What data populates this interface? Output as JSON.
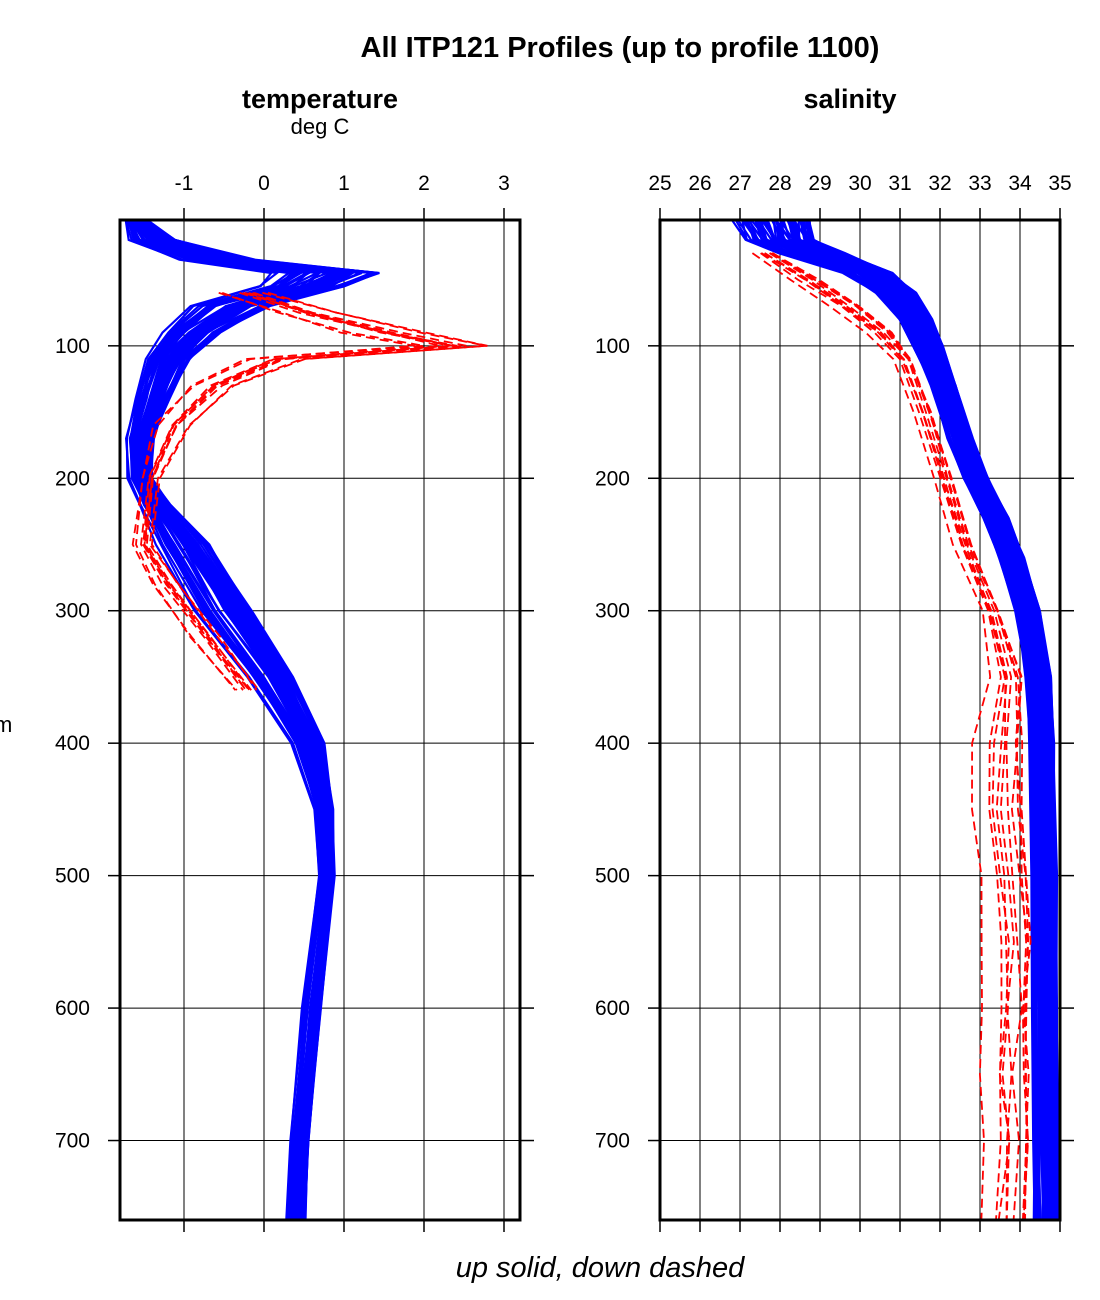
{
  "chart_data": [
    {
      "type": "line",
      "title": "temperature",
      "xlabel": "deg C",
      "ylabel": "m",
      "xlim": [
        -1.8,
        3.2
      ],
      "ylim": [
        760,
        5
      ],
      "xticks": [
        -1,
        0,
        1,
        2,
        3
      ],
      "yticks": [
        100,
        200,
        300,
        400,
        500,
        600,
        700
      ],
      "grid": true,
      "series": [
        {
          "style": "solid",
          "color": "#0000ff",
          "depth": [
            5,
            20,
            35,
            45,
            55,
            70,
            90,
            110,
            140,
            170,
            200,
            220,
            250,
            300,
            350,
            400,
            450,
            500,
            600,
            700,
            760
          ],
          "values": [
            -1.6,
            -1.4,
            -0.6,
            0.8,
            0.5,
            -0.4,
            -0.9,
            -1.2,
            -1.4,
            -1.55,
            -1.55,
            -1.35,
            -1.0,
            -0.5,
            0.1,
            0.55,
            0.75,
            0.78,
            0.6,
            0.45,
            0.4
          ],
          "spread": [
            0.15,
            0.3,
            0.5,
            0.7,
            0.55,
            0.5,
            0.35,
            0.3,
            0.22,
            0.18,
            0.15,
            0.2,
            0.35,
            0.35,
            0.3,
            0.2,
            0.12,
            0.1,
            0.12,
            0.12,
            0.12
          ]
        },
        {
          "style": "dashed",
          "color": "#ff0000",
          "depth": [
            60,
            75,
            90,
            100,
            110,
            130,
            160,
            200,
            250,
            280,
            320,
            360
          ],
          "values": [
            -0.2,
            0.6,
            1.6,
            2.4,
            0.2,
            -0.6,
            -1.1,
            -1.4,
            -1.5,
            -1.2,
            -0.7,
            -0.2
          ],
          "spread": [
            0.4,
            0.5,
            0.7,
            0.6,
            0.5,
            0.35,
            0.3,
            0.15,
            0.15,
            0.2,
            0.25,
            0.2
          ]
        }
      ]
    },
    {
      "type": "line",
      "title": "salinity",
      "xlabel": "",
      "ylabel": "",
      "xlim": [
        25,
        35
      ],
      "ylim": [
        760,
        5
      ],
      "xticks": [
        25,
        26,
        27,
        28,
        29,
        30,
        31,
        32,
        33,
        34,
        35
      ],
      "yticks": [
        100,
        200,
        300,
        400,
        500,
        600,
        700
      ],
      "grid": true,
      "series": [
        {
          "style": "solid",
          "color": "#0000ff",
          "depth": [
            5,
            20,
            30,
            45,
            60,
            80,
            100,
            130,
            170,
            200,
            230,
            260,
            300,
            350,
            400,
            500,
            600,
            700,
            760
          ],
          "values": [
            27.8,
            28.0,
            28.8,
            30.2,
            30.9,
            31.4,
            31.7,
            32.1,
            32.5,
            32.9,
            33.4,
            33.8,
            34.2,
            34.45,
            34.55,
            34.6,
            34.62,
            34.64,
            34.65
          ],
          "spread": [
            0.9,
            0.8,
            0.8,
            0.6,
            0.5,
            0.4,
            0.35,
            0.3,
            0.3,
            0.3,
            0.3,
            0.3,
            0.3,
            0.3,
            0.3,
            0.3,
            0.3,
            0.3,
            0.3
          ]
        },
        {
          "style": "dashed",
          "color": "#ff0000",
          "depth": [
            30,
            50,
            70,
            90,
            110,
            150,
            200,
            250,
            300,
            350,
            400,
            450,
            500,
            550,
            600,
            650,
            700,
            760
          ],
          "values": [
            27.5,
            28.5,
            29.5,
            30.4,
            31.0,
            31.5,
            32.0,
            32.5,
            33.2,
            33.5,
            33.3,
            33.2,
            33.4,
            33.5,
            33.5,
            33.4,
            33.5,
            33.4
          ],
          "spread": [
            0.4,
            0.5,
            0.5,
            0.4,
            0.3,
            0.3,
            0.3,
            0.3,
            0.3,
            0.6,
            0.8,
            0.9,
            0.8,
            0.8,
            0.8,
            0.9,
            0.8,
            0.8
          ]
        }
      ]
    }
  ],
  "figure": {
    "title": "All ITP121 Profiles (up to profile 1100)",
    "footer": "up solid, down dashed"
  }
}
